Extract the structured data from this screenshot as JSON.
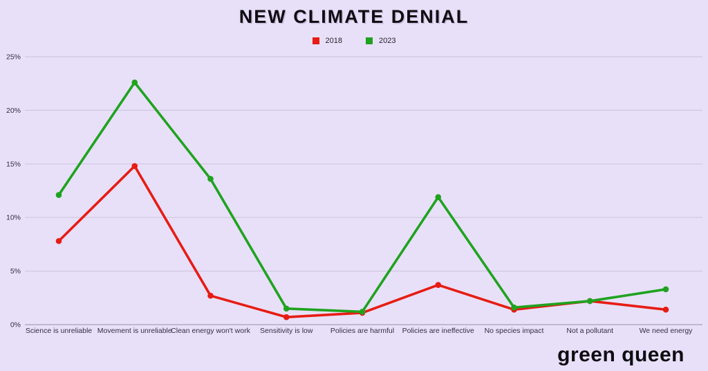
{
  "logo_text": "green queen",
  "colors": {
    "background": "#e8e0f9",
    "gridline": "#cfc6e0",
    "axis_line": "#a79fba",
    "label_text": "#322c40",
    "series_2018": "#e71c13",
    "series_2023": "#1fa31f"
  },
  "chart_data": {
    "type": "line",
    "title": "NEW CLIMATE DENIAL",
    "xlabel": "",
    "ylabel": "",
    "categories": [
      "Science is unreliable",
      "Movement is unreliable",
      "Clean energy won't work",
      "Sensitivity is low",
      "Policies are harmful",
      "Policies are ineffective",
      "No species impact",
      "Not a pollutant",
      "We need energy"
    ],
    "series": [
      {
        "name": "2018",
        "color": "#e71c13",
        "values": [
          7.8,
          14.8,
          2.7,
          0.7,
          1.1,
          3.7,
          1.4,
          2.2,
          1.4
        ]
      },
      {
        "name": "2023",
        "color": "#1fa31f",
        "values": [
          12.1,
          22.6,
          13.6,
          1.5,
          1.2,
          11.9,
          1.6,
          2.2,
          3.3
        ]
      }
    ],
    "y_ticks": [
      "0%",
      "5%",
      "10%",
      "15%",
      "20%",
      "25%"
    ],
    "ylim": [
      0,
      25
    ],
    "grid": true,
    "legend_position": "top"
  }
}
